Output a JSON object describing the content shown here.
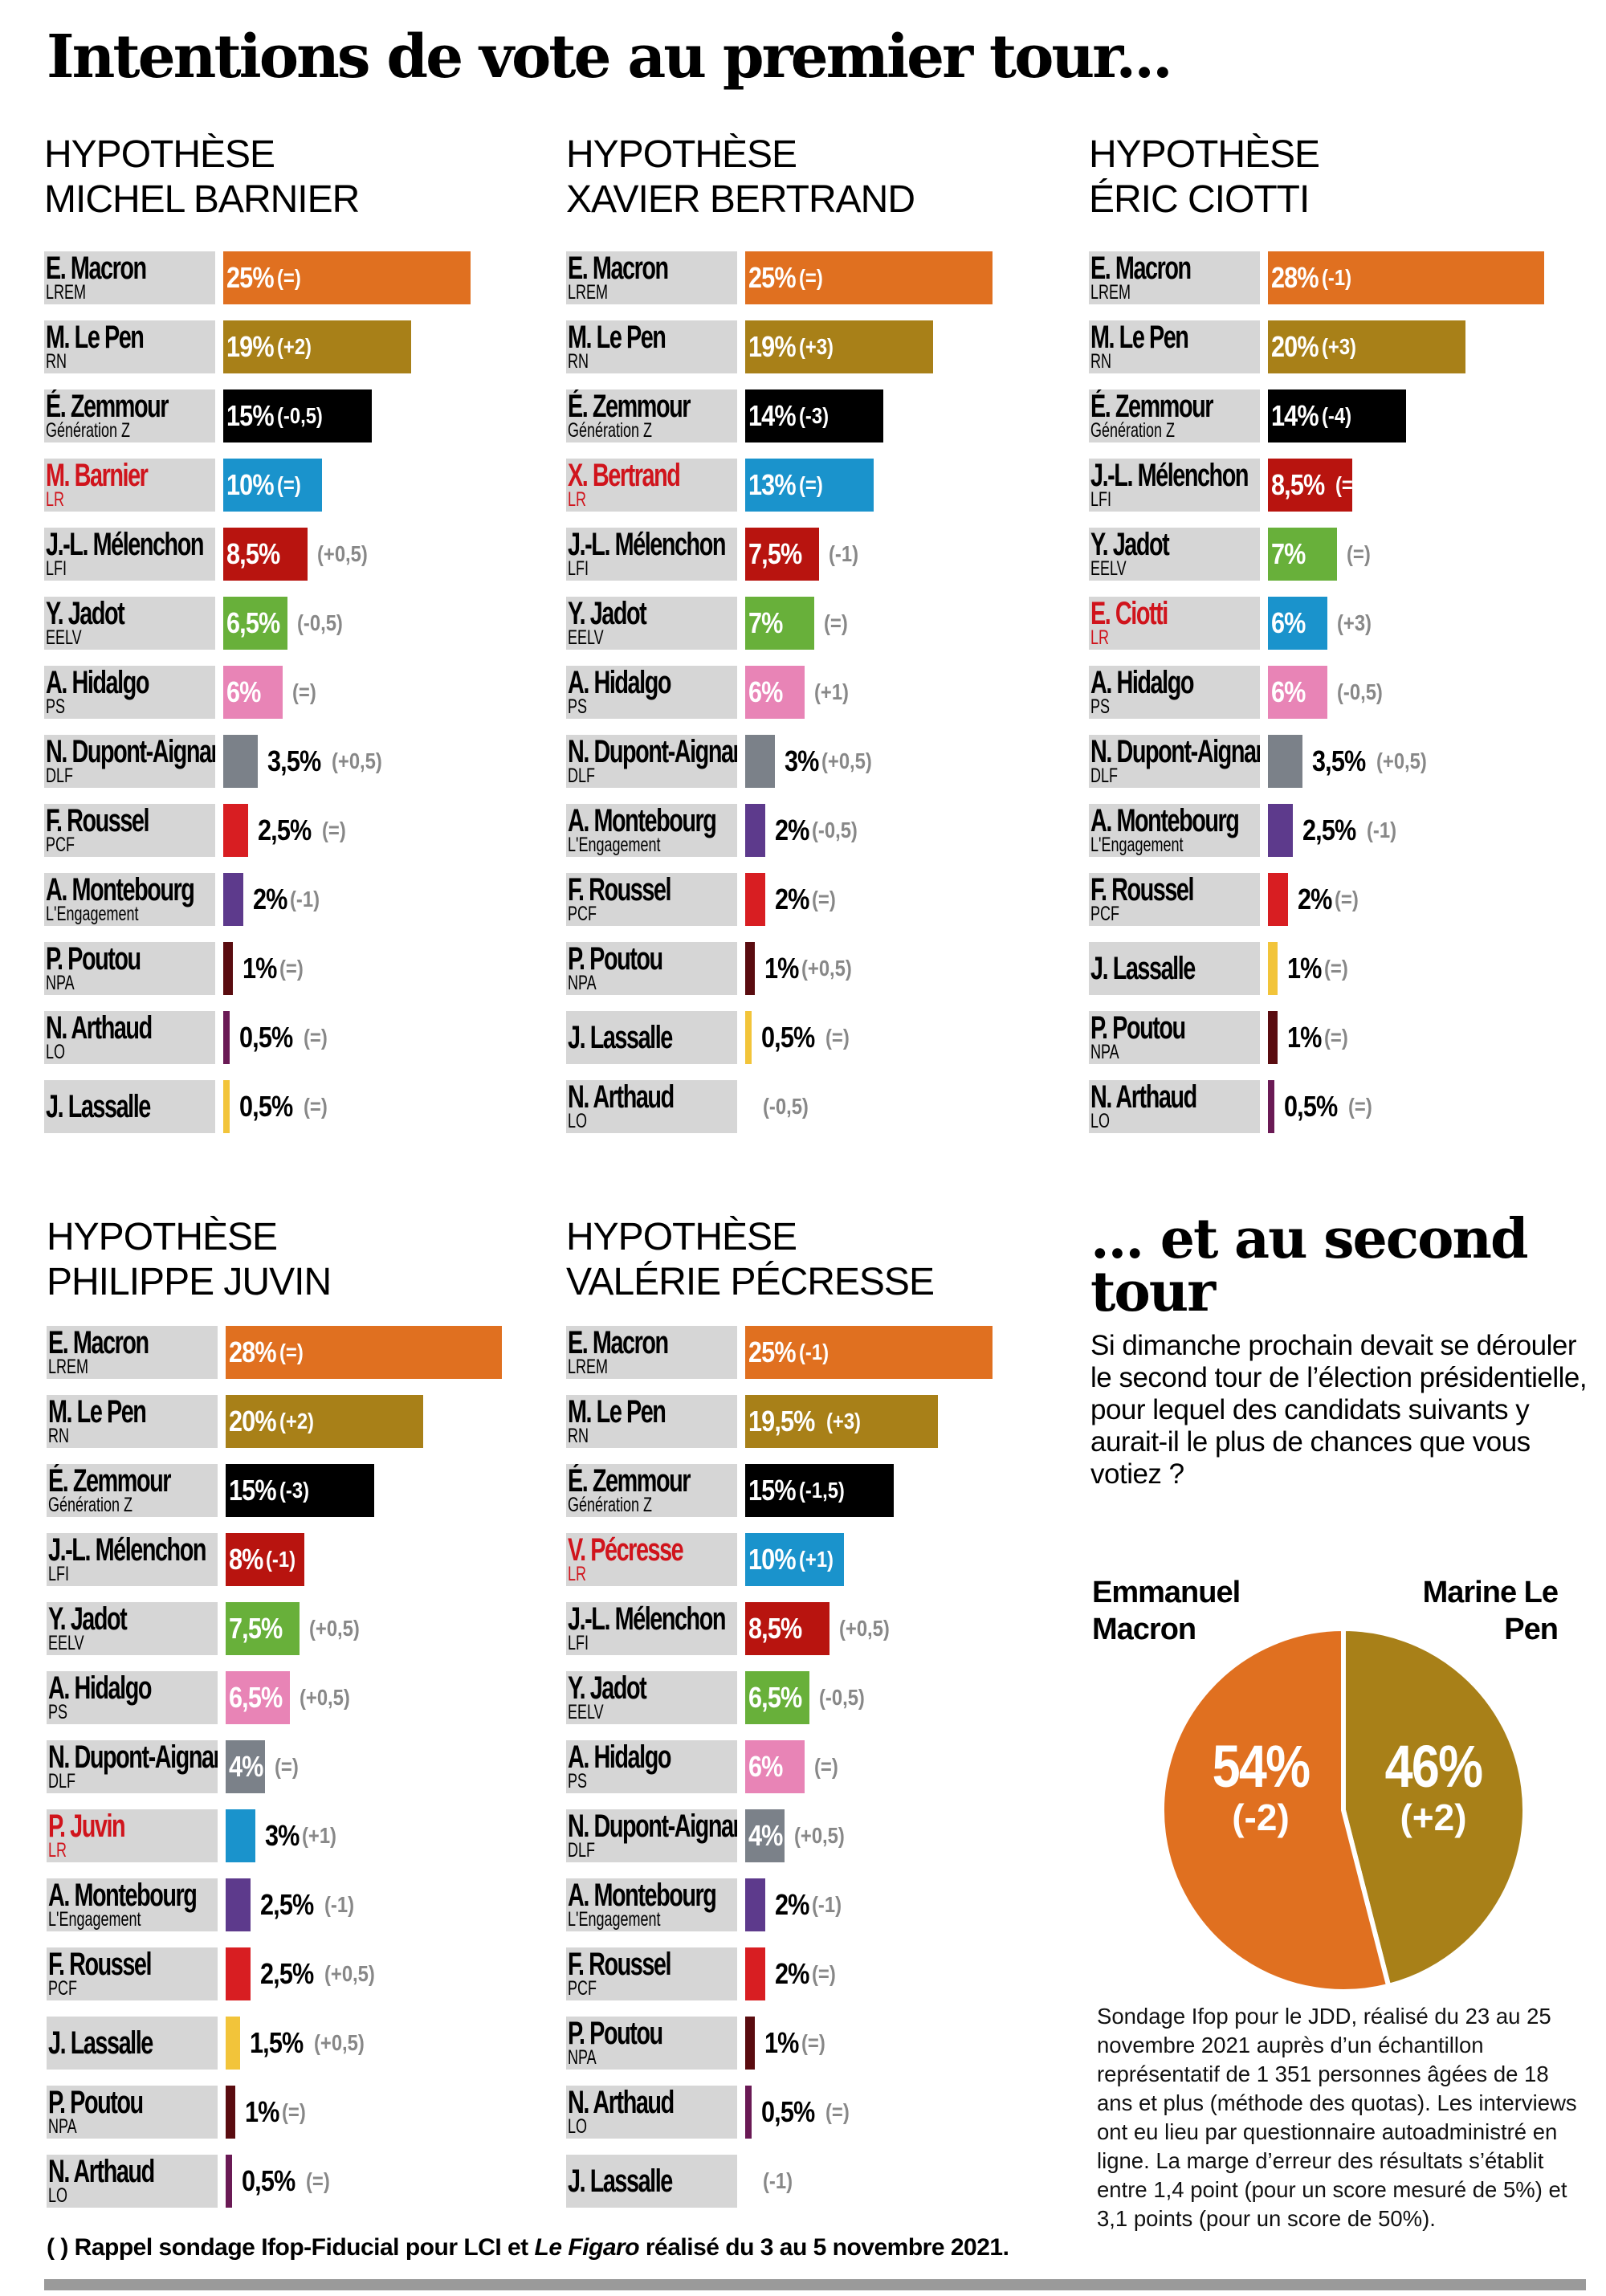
{
  "title": "Intentions de vote au premier tour...",
  "colors": {
    "macron": "#e07020",
    "lepen": "#a88018",
    "zemmour": "#000000",
    "lr": "#1a93cc",
    "melenchon": "#b8140f",
    "jadot": "#68b03a",
    "hidalgo": "#e884b6",
    "dupont": "#7b8189",
    "roussel": "#d81e22",
    "montebourg": "#5d3a8c",
    "poutou": "#5a0c10",
    "arthaud": "#6a1a55",
    "lassalle": "#f2c43a"
  },
  "chart_data": [
    {
      "type": "bar",
      "heading": [
        "HYPOTHÈSE",
        "MICHEL BARNIER"
      ],
      "rows": [
        {
          "name": "E. Macron",
          "party": "LREM",
          "value": 25,
          "label": "25%",
          "delta": "(=)",
          "color": "macron"
        },
        {
          "name": "M. Le Pen",
          "party": "RN",
          "value": 19,
          "label": "19%",
          "delta": "(+2)",
          "color": "lepen"
        },
        {
          "name": "É. Zemmour",
          "party": "Génération Z",
          "value": 15,
          "label": "15%",
          "delta": "(-0,5)",
          "color": "zemmour"
        },
        {
          "name": "M. Barnier",
          "party": "LR",
          "value": 10,
          "label": "10%",
          "delta": "(=)",
          "color": "lr",
          "highlight": true
        },
        {
          "name": "J.-L. Mélenchon",
          "party": "LFI",
          "value": 8.5,
          "label": "8,5%",
          "delta": "(+0,5)",
          "color": "melenchon"
        },
        {
          "name": "Y. Jadot",
          "party": "EELV",
          "value": 6.5,
          "label": "6,5%",
          "delta": "(-0,5)",
          "color": "jadot"
        },
        {
          "name": "A. Hidalgo",
          "party": "PS",
          "value": 6,
          "label": "6%",
          "delta": "(=)",
          "color": "hidalgo"
        },
        {
          "name": "N. Dupont-Aignan",
          "party": "DLF",
          "value": 3.5,
          "label": "3,5%",
          "delta": "(+0,5)",
          "color": "dupont"
        },
        {
          "name": "F. Roussel",
          "party": "PCF",
          "value": 2.5,
          "label": "2,5%",
          "delta": "(=)",
          "color": "roussel"
        },
        {
          "name": "A. Montebourg",
          "party": "L'Engagement",
          "value": 2,
          "label": "2%",
          "delta": "(-1)",
          "color": "montebourg"
        },
        {
          "name": "P. Poutou",
          "party": "NPA",
          "value": 1,
          "label": "1%",
          "delta": "(=)",
          "color": "poutou"
        },
        {
          "name": "N. Arthaud",
          "party": "LO",
          "value": 0.5,
          "label": "0,5%",
          "delta": "(=)",
          "color": "arthaud"
        },
        {
          "name": "J. Lassalle",
          "party": "",
          "value": 0.5,
          "label": "0,5%",
          "delta": "(=)",
          "color": "lassalle"
        }
      ]
    },
    {
      "type": "bar",
      "heading": [
        "HYPOTHÈSE",
        "XAVIER BERTRAND"
      ],
      "rows": [
        {
          "name": "E. Macron",
          "party": "LREM",
          "value": 25,
          "label": "25%",
          "delta": "(=)",
          "color": "macron"
        },
        {
          "name": "M. Le Pen",
          "party": "RN",
          "value": 19,
          "label": "19%",
          "delta": "(+3)",
          "color": "lepen"
        },
        {
          "name": "É. Zemmour",
          "party": "Génération Z",
          "value": 14,
          "label": "14%",
          "delta": "(-3)",
          "color": "zemmour"
        },
        {
          "name": "X. Bertrand",
          "party": "LR",
          "value": 13,
          "label": "13%",
          "delta": "(=)",
          "color": "lr",
          "highlight": true
        },
        {
          "name": "J.-L. Mélenchon",
          "party": "LFI",
          "value": 7.5,
          "label": "7,5%",
          "delta": "(-1)",
          "color": "melenchon"
        },
        {
          "name": "Y. Jadot",
          "party": "EELV",
          "value": 7,
          "label": "7%",
          "delta": "(=)",
          "color": "jadot"
        },
        {
          "name": "A. Hidalgo",
          "party": "PS",
          "value": 6,
          "label": "6%",
          "delta": "(+1)",
          "color": "hidalgo"
        },
        {
          "name": "N. Dupont-Aignan",
          "party": "DLF",
          "value": 3,
          "label": "3%",
          "delta": "(+0,5)",
          "color": "dupont"
        },
        {
          "name": "A. Montebourg",
          "party": "L'Engagement",
          "value": 2,
          "label": "2%",
          "delta": "(-0,5)",
          "color": "montebourg"
        },
        {
          "name": "F. Roussel",
          "party": "PCF",
          "value": 2,
          "label": "2%",
          "delta": "(=)",
          "color": "roussel"
        },
        {
          "name": "P. Poutou",
          "party": "NPA",
          "value": 1,
          "label": "1%",
          "delta": "(+0,5)",
          "color": "poutou"
        },
        {
          "name": "J. Lassalle",
          "party": "",
          "value": 0.5,
          "label": "0,5%",
          "delta": "(=)",
          "color": "lassalle"
        },
        {
          "name": "N. Arthaud",
          "party": "LO",
          "value": 0,
          "label": "",
          "delta": "(-0,5)",
          "color": "arthaud"
        }
      ]
    },
    {
      "type": "bar",
      "heading": [
        "HYPOTHÈSE",
        "ÉRIC CIOTTI"
      ],
      "rows": [
        {
          "name": "E. Macron",
          "party": "LREM",
          "value": 28,
          "label": "28%",
          "delta": "(-1)",
          "color": "macron"
        },
        {
          "name": "M. Le Pen",
          "party": "RN",
          "value": 20,
          "label": "20%",
          "delta": "(+3)",
          "color": "lepen"
        },
        {
          "name": "É. Zemmour",
          "party": "Génération Z",
          "value": 14,
          "label": "14%",
          "delta": "(-4)",
          "color": "zemmour"
        },
        {
          "name": "J.-L. Mélenchon",
          "party": "LFI",
          "value": 8.5,
          "label": "8,5%",
          "delta": "(=)",
          "color": "melenchon"
        },
        {
          "name": "Y. Jadot",
          "party": "EELV",
          "value": 7,
          "label": "7%",
          "delta": "(=)",
          "color": "jadot"
        },
        {
          "name": "E. Ciotti",
          "party": "LR",
          "value": 6,
          "label": "6%",
          "delta": "(+3)",
          "color": "lr",
          "highlight": true
        },
        {
          "name": "A. Hidalgo",
          "party": "PS",
          "value": 6,
          "label": "6%",
          "delta": "(-0,5)",
          "color": "hidalgo"
        },
        {
          "name": "N. Dupont-Aignan",
          "party": "DLF",
          "value": 3.5,
          "label": "3,5%",
          "delta": "(+0,5)",
          "color": "dupont"
        },
        {
          "name": "A. Montebourg",
          "party": "L'Engagement",
          "value": 2.5,
          "label": "2,5%",
          "delta": "(-1)",
          "color": "montebourg"
        },
        {
          "name": "F. Roussel",
          "party": "PCF",
          "value": 2,
          "label": "2%",
          "delta": "(=)",
          "color": "roussel"
        },
        {
          "name": "J. Lassalle",
          "party": "",
          "value": 1,
          "label": "1%",
          "delta": "(=)",
          "color": "lassalle"
        },
        {
          "name": "P. Poutou",
          "party": "NPA",
          "value": 1,
          "label": "1%",
          "delta": "(=)",
          "color": "poutou"
        },
        {
          "name": "N. Arthaud",
          "party": "LO",
          "value": 0.5,
          "label": "0,5%",
          "delta": "(=)",
          "color": "arthaud"
        }
      ]
    },
    {
      "type": "bar",
      "heading": [
        "HYPOTHÈSE",
        "PHILIPPE JUVIN"
      ],
      "rows": [
        {
          "name": "E. Macron",
          "party": "LREM",
          "value": 28,
          "label": "28%",
          "delta": "(=)",
          "color": "macron"
        },
        {
          "name": "M. Le Pen",
          "party": "RN",
          "value": 20,
          "label": "20%",
          "delta": "(+2)",
          "color": "lepen"
        },
        {
          "name": "É. Zemmour",
          "party": "Génération Z",
          "value": 15,
          "label": "15%",
          "delta": "(-3)",
          "color": "zemmour"
        },
        {
          "name": "J.-L. Mélenchon",
          "party": "LFI",
          "value": 8,
          "label": "8%",
          "delta": "(-1)",
          "color": "melenchon"
        },
        {
          "name": "Y. Jadot",
          "party": "EELV",
          "value": 7.5,
          "label": "7,5%",
          "delta": "(+0,5)",
          "color": "jadot"
        },
        {
          "name": "A. Hidalgo",
          "party": "PS",
          "value": 6.5,
          "label": "6,5%",
          "delta": "(+0,5)",
          "color": "hidalgo"
        },
        {
          "name": "N. Dupont-Aignan",
          "party": "DLF",
          "value": 4,
          "label": "4%",
          "delta": "(=)",
          "color": "dupont"
        },
        {
          "name": "P. Juvin",
          "party": "LR",
          "value": 3,
          "label": "3%",
          "delta": "(+1)",
          "color": "lr",
          "highlight": true
        },
        {
          "name": "A. Montebourg",
          "party": "L'Engagement",
          "value": 2.5,
          "label": "2,5%",
          "delta": "(-1)",
          "color": "montebourg"
        },
        {
          "name": "F. Roussel",
          "party": "PCF",
          "value": 2.5,
          "label": "2,5%",
          "delta": "(+0,5)",
          "color": "roussel"
        },
        {
          "name": "J. Lassalle",
          "party": "",
          "value": 1.5,
          "label": "1,5%",
          "delta": "(+0,5)",
          "color": "lassalle"
        },
        {
          "name": "P. Poutou",
          "party": "NPA",
          "value": 1,
          "label": "1%",
          "delta": "(=)",
          "color": "poutou"
        },
        {
          "name": "N. Arthaud",
          "party": "LO",
          "value": 0.5,
          "label": "0,5%",
          "delta": "(=)",
          "color": "arthaud"
        }
      ]
    },
    {
      "type": "bar",
      "heading": [
        "HYPOTHÈSE",
        "VALÉRIE PÉCRESSE"
      ],
      "rows": [
        {
          "name": "E. Macron",
          "party": "LREM",
          "value": 25,
          "label": "25%",
          "delta": "(-1)",
          "color": "macron"
        },
        {
          "name": "M. Le Pen",
          "party": "RN",
          "value": 19.5,
          "label": "19,5%",
          "delta": "(+3)",
          "color": "lepen"
        },
        {
          "name": "É. Zemmour",
          "party": "Génération Z",
          "value": 15,
          "label": "15%",
          "delta": "(-1,5)",
          "color": "zemmour"
        },
        {
          "name": "V. Pécresse",
          "party": "LR",
          "value": 10,
          "label": "10%",
          "delta": "(+1)",
          "color": "lr",
          "highlight": true
        },
        {
          "name": "J.-L. Mélenchon",
          "party": "LFI",
          "value": 8.5,
          "label": "8,5%",
          "delta": "(+0,5)",
          "color": "melenchon"
        },
        {
          "name": "Y. Jadot",
          "party": "EELV",
          "value": 6.5,
          "label": "6,5%",
          "delta": "(-0,5)",
          "color": "jadot"
        },
        {
          "name": "A. Hidalgo",
          "party": "PS",
          "value": 6,
          "label": "6%",
          "delta": "(=)",
          "color": "hidalgo"
        },
        {
          "name": "N. Dupont-Aignan",
          "party": "DLF",
          "value": 4,
          "label": "4%",
          "delta": "(+0,5)",
          "color": "dupont"
        },
        {
          "name": "A. Montebourg",
          "party": "L'Engagement",
          "value": 2,
          "label": "2%",
          "delta": "(-1)",
          "color": "montebourg"
        },
        {
          "name": "F. Roussel",
          "party": "PCF",
          "value": 2,
          "label": "2%",
          "delta": "(=)",
          "color": "roussel"
        },
        {
          "name": "P. Poutou",
          "party": "NPA",
          "value": 1,
          "label": "1%",
          "delta": "(=)",
          "color": "poutou"
        },
        {
          "name": "N. Arthaud",
          "party": "LO",
          "value": 0.5,
          "label": "0,5%",
          "delta": "(=)",
          "color": "arthaud"
        },
        {
          "name": "J. Lassalle",
          "party": "",
          "value": 0,
          "label": "",
          "delta": "(-1)",
          "color": "lassalle"
        }
      ]
    },
    {
      "type": "pie",
      "title": "... et au second tour",
      "question": "Si dimanche prochain devait se dérouler le second tour de l’élection présidentielle, pour lequel des candidats suivants y aurait-il le plus de chances que vous votiez ?",
      "slices": [
        {
          "name": "Emmanuel Macron",
          "value": 54,
          "label": "54%",
          "delta": "(-2)",
          "color": "macron"
        },
        {
          "name": "Marine Le Pen",
          "value": 46,
          "label": "46%",
          "delta": "(+2)",
          "color": "lepen"
        }
      ]
    }
  ],
  "methodology": "Sondage Ifop pour le JDD, réalisé du 23 au 25 novembre 2021 auprès d’un échantillon représentatif de 1 351 personnes âgées de 18 ans et plus (méthode des quotas). Les interviews ont eu lieu par questionnaire autoadministré en ligne. La marge d’erreur des résultats s’établit entre 1,4 point (pour un score mesuré de 5%) et 3,1 points (pour un score de 50%).",
  "footnote": {
    "prefix": "( ) Rappel sondage Ifop-Fiducial pour LCI et ",
    "italic": "Le Figaro",
    "suffix": " réalisé du 3 au 5 novembre 2021."
  }
}
